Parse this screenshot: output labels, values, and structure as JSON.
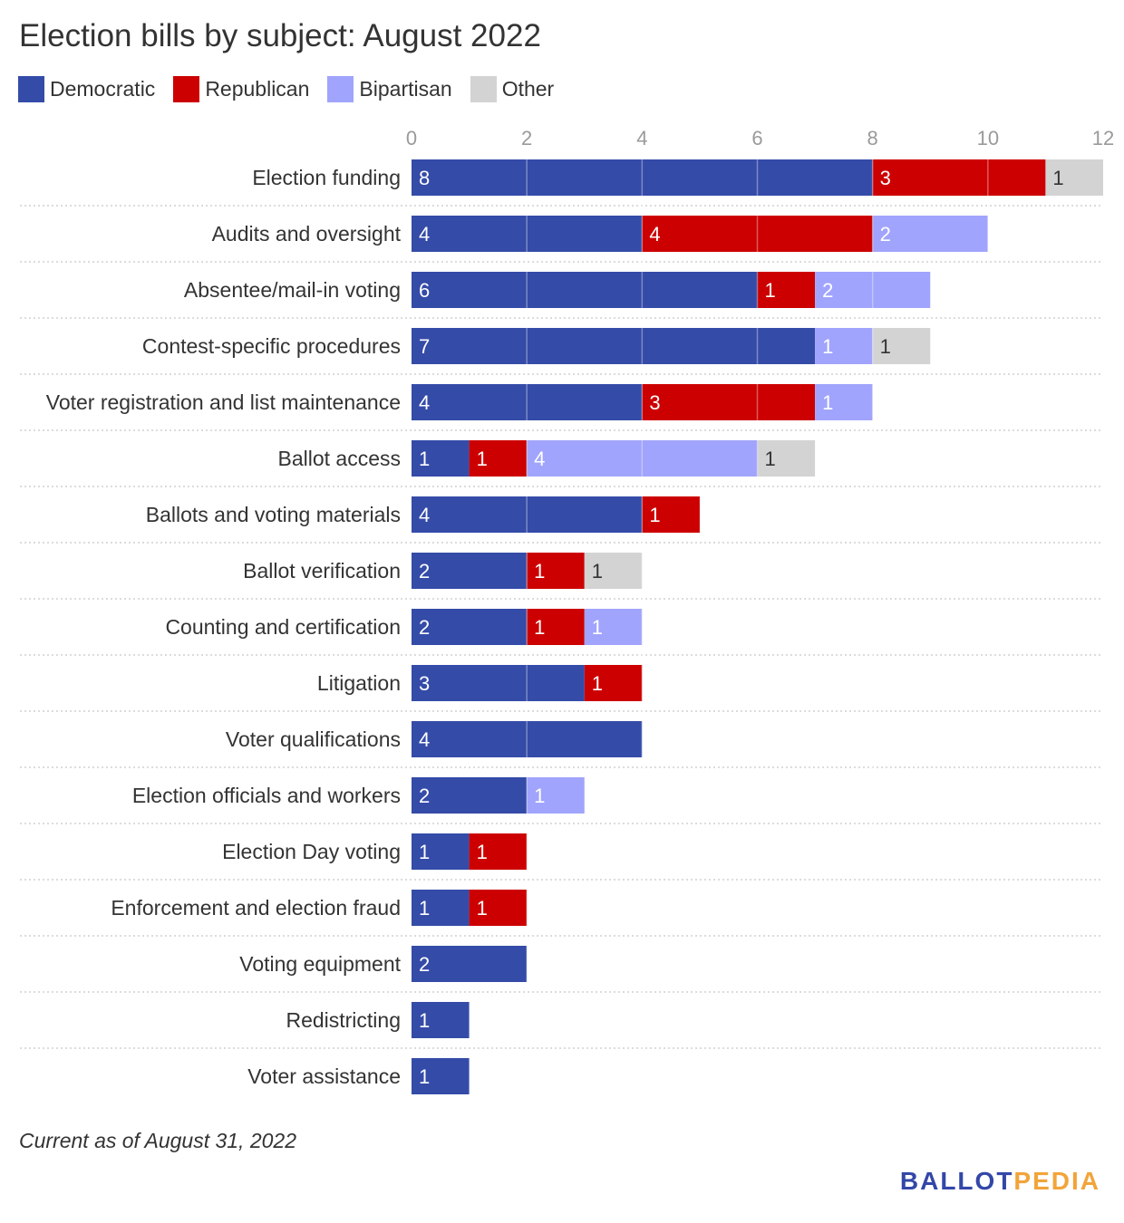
{
  "title": "Election bills by subject: August 2022",
  "footnote": "Current as of August 31, 2022",
  "brand": {
    "part1": "BALLOT",
    "part2": "PEDIA",
    "color1": "#3347a8",
    "color2": "#f2a43a"
  },
  "legend": [
    {
      "name": "Democratic",
      "color": "#344ba8"
    },
    {
      "name": "Republican",
      "color": "#cc0000"
    },
    {
      "name": "Bipartisan",
      "color": "#a0a4fc"
    },
    {
      "name": "Other",
      "color": "#d3d3d3"
    }
  ],
  "chart_data": {
    "type": "bar",
    "orientation": "horizontal",
    "stacked": true,
    "title": "Election bills by subject: August 2022",
    "xlim": [
      0,
      12
    ],
    "x_ticks": [
      "0",
      "2",
      "4",
      "6",
      "8",
      "10",
      "12"
    ],
    "x_axis_position": "top",
    "grid": true,
    "legend_position": "top-left",
    "categories": [
      "Election funding",
      "Audits and oversight",
      "Absentee/mail-in voting",
      "Contest-specific procedures",
      "Voter registration and list maintenance",
      "Ballot access",
      "Ballots and voting materials",
      "Ballot verification",
      "Counting and certification",
      "Litigation",
      "Voter qualifications",
      "Election officials and workers",
      "Election Day voting",
      "Enforcement and election fraud",
      "Voting equipment",
      "Redistricting",
      "Voter assistance"
    ],
    "series": [
      {
        "name": "Democratic",
        "color": "#344ba8",
        "label_color": "#ffffff",
        "values": [
          8,
          4,
          6,
          7,
          4,
          1,
          4,
          2,
          2,
          3,
          4,
          2,
          1,
          1,
          2,
          1,
          1
        ]
      },
      {
        "name": "Republican",
        "color": "#cc0000",
        "label_color": "#ffffff",
        "values": [
          3,
          4,
          1,
          0,
          3,
          1,
          1,
          1,
          1,
          1,
          0,
          0,
          1,
          1,
          0,
          0,
          0
        ]
      },
      {
        "name": "Bipartisan",
        "color": "#a0a4fc",
        "label_color": "#ffffff",
        "values": [
          0,
          2,
          2,
          1,
          1,
          4,
          0,
          0,
          1,
          0,
          0,
          1,
          0,
          0,
          0,
          0,
          0
        ]
      },
      {
        "name": "Other",
        "color": "#d3d3d3",
        "label_color": "#333333",
        "values": [
          1,
          0,
          0,
          1,
          0,
          1,
          0,
          1,
          0,
          0,
          0,
          0,
          0,
          0,
          0,
          0,
          0
        ]
      }
    ]
  }
}
